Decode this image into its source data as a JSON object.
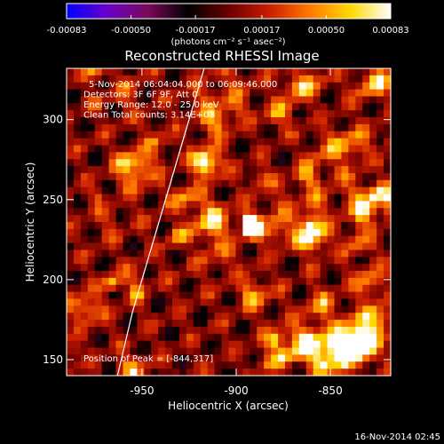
{
  "colorbar": {
    "ticks": [
      "-0.00083",
      "-0.00050",
      "-0.00017",
      "0.00017",
      "0.00050",
      "0.00083"
    ],
    "tick_values": [
      -0.00083,
      -0.0005,
      -0.00017,
      0.00017,
      0.0005,
      0.00083
    ],
    "range": [
      -0.00083,
      0.00083
    ],
    "units_label": "(photons cm⁻² s⁻¹ asec⁻²)",
    "colors": [
      "#0000ff",
      "#6a00c8",
      "#7a0a5a",
      "#000000",
      "#6a0000",
      "#c81e00",
      "#ff7800",
      "#ffd800",
      "#ffffff"
    ]
  },
  "chart_data": {
    "type": "heatmap",
    "title": "Reconstructed RHESSI Image",
    "xlabel": "Heliocentric X (arcsec)",
    "ylabel": "Heliocentric Y (arcsec)",
    "xlim": [
      -990,
      -818
    ],
    "ylim": [
      140,
      332
    ],
    "xticks": [
      -950,
      -900,
      -850
    ],
    "yticks": [
      150,
      200,
      250,
      300
    ],
    "xtick_labels": [
      "-950",
      "-900",
      "-850"
    ],
    "ytick_labels": [
      "150",
      "200",
      "250",
      "300"
    ],
    "value_range": [
      -0.00083,
      0.00083
    ],
    "annotations": [
      "5-Nov-2014 06:04:04.000 to 06:09:46.000",
      "Detectors: 3F 6F 9F, Att 0",
      "Energy Range: 12.0 - 25.0 keV",
      "Clean    Total counts: 3.14E+03"
    ],
    "peak_label": "Position of Peak = [-844,317]",
    "peak": [
      -844,
      317
    ],
    "limb_line": {
      "x": [
        -963,
        -955,
        -945,
        -935,
        -925,
        -917
      ],
      "y": [
        140,
        180,
        220,
        260,
        300,
        332
      ]
    }
  },
  "footer": {
    "timestamp": "16-Nov-2014 02:45"
  }
}
